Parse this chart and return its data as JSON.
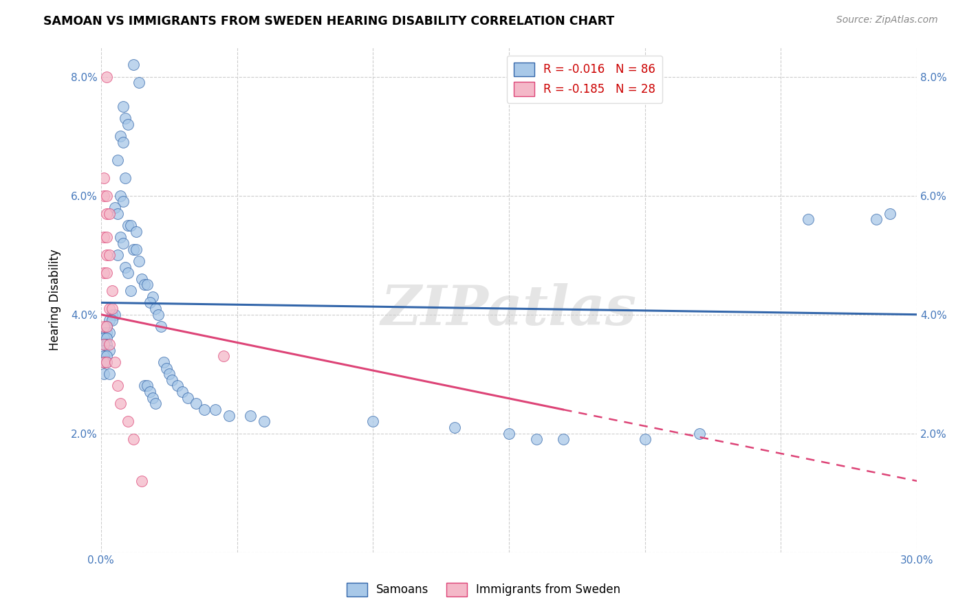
{
  "title": "SAMOAN VS IMMIGRANTS FROM SWEDEN HEARING DISABILITY CORRELATION CHART",
  "source": "Source: ZipAtlas.com",
  "ylabel": "Hearing Disability",
  "watermark": "ZIPatlas",
  "xlim": [
    0.0,
    0.3
  ],
  "ylim": [
    0.0,
    0.085
  ],
  "xticks": [
    0.0,
    0.05,
    0.1,
    0.15,
    0.2,
    0.25,
    0.3
  ],
  "yticks": [
    0.0,
    0.02,
    0.04,
    0.06,
    0.08
  ],
  "blue_color": "#A8C8E8",
  "pink_color": "#F4B8C8",
  "blue_line_color": "#3366AA",
  "pink_line_color": "#DD4477",
  "blue_scatter": [
    [
      0.012,
      0.082
    ],
    [
      0.014,
      0.079
    ],
    [
      0.008,
      0.075
    ],
    [
      0.009,
      0.073
    ],
    [
      0.01,
      0.072
    ],
    [
      0.007,
      0.07
    ],
    [
      0.008,
      0.069
    ],
    [
      0.006,
      0.066
    ],
    [
      0.009,
      0.063
    ],
    [
      0.007,
      0.06
    ],
    [
      0.008,
      0.059
    ],
    [
      0.005,
      0.058
    ],
    [
      0.006,
      0.057
    ],
    [
      0.01,
      0.055
    ],
    [
      0.011,
      0.055
    ],
    [
      0.013,
      0.054
    ],
    [
      0.007,
      0.053
    ],
    [
      0.008,
      0.052
    ],
    [
      0.012,
      0.051
    ],
    [
      0.013,
      0.051
    ],
    [
      0.006,
      0.05
    ],
    [
      0.014,
      0.049
    ],
    [
      0.009,
      0.048
    ],
    [
      0.01,
      0.047
    ],
    [
      0.015,
      0.046
    ],
    [
      0.016,
      0.045
    ],
    [
      0.017,
      0.045
    ],
    [
      0.011,
      0.044
    ],
    [
      0.019,
      0.043
    ],
    [
      0.018,
      0.042
    ],
    [
      0.02,
      0.041
    ],
    [
      0.004,
      0.04
    ],
    [
      0.005,
      0.04
    ],
    [
      0.021,
      0.04
    ],
    [
      0.003,
      0.039
    ],
    [
      0.004,
      0.039
    ],
    [
      0.022,
      0.038
    ],
    [
      0.002,
      0.038
    ],
    [
      0.001,
      0.037
    ],
    [
      0.002,
      0.037
    ],
    [
      0.003,
      0.037
    ],
    [
      0.001,
      0.036
    ],
    [
      0.002,
      0.036
    ],
    [
      0.001,
      0.035
    ],
    [
      0.002,
      0.035
    ],
    [
      0.001,
      0.034
    ],
    [
      0.003,
      0.034
    ],
    [
      0.001,
      0.033
    ],
    [
      0.002,
      0.033
    ],
    [
      0.001,
      0.032
    ],
    [
      0.002,
      0.032
    ],
    [
      0.023,
      0.032
    ],
    [
      0.024,
      0.031
    ],
    [
      0.001,
      0.03
    ],
    [
      0.003,
      0.03
    ],
    [
      0.025,
      0.03
    ],
    [
      0.026,
      0.029
    ],
    [
      0.016,
      0.028
    ],
    [
      0.017,
      0.028
    ],
    [
      0.028,
      0.028
    ],
    [
      0.018,
      0.027
    ],
    [
      0.03,
      0.027
    ],
    [
      0.019,
      0.026
    ],
    [
      0.032,
      0.026
    ],
    [
      0.02,
      0.025
    ],
    [
      0.035,
      0.025
    ],
    [
      0.038,
      0.024
    ],
    [
      0.042,
      0.024
    ],
    [
      0.047,
      0.023
    ],
    [
      0.055,
      0.023
    ],
    [
      0.06,
      0.022
    ],
    [
      0.1,
      0.022
    ],
    [
      0.13,
      0.021
    ],
    [
      0.15,
      0.02
    ],
    [
      0.16,
      0.019
    ],
    [
      0.17,
      0.019
    ],
    [
      0.2,
      0.019
    ],
    [
      0.22,
      0.02
    ],
    [
      0.26,
      0.056
    ],
    [
      0.285,
      0.056
    ],
    [
      0.29,
      0.057
    ]
  ],
  "pink_scatter": [
    [
      0.002,
      0.08
    ],
    [
      0.001,
      0.063
    ],
    [
      0.001,
      0.06
    ],
    [
      0.002,
      0.06
    ],
    [
      0.002,
      0.057
    ],
    [
      0.003,
      0.057
    ],
    [
      0.001,
      0.053
    ],
    [
      0.002,
      0.053
    ],
    [
      0.002,
      0.05
    ],
    [
      0.003,
      0.05
    ],
    [
      0.001,
      0.047
    ],
    [
      0.002,
      0.047
    ],
    [
      0.004,
      0.044
    ],
    [
      0.003,
      0.041
    ],
    [
      0.004,
      0.041
    ],
    [
      0.001,
      0.038
    ],
    [
      0.002,
      0.038
    ],
    [
      0.001,
      0.035
    ],
    [
      0.003,
      0.035
    ],
    [
      0.001,
      0.032
    ],
    [
      0.002,
      0.032
    ],
    [
      0.005,
      0.032
    ],
    [
      0.006,
      0.028
    ],
    [
      0.007,
      0.025
    ],
    [
      0.01,
      0.022
    ],
    [
      0.012,
      0.019
    ],
    [
      0.015,
      0.012
    ],
    [
      0.045,
      0.033
    ]
  ],
  "blue_line": {
    "x0": 0.0,
    "y0": 0.042,
    "x1": 0.3,
    "y1": 0.04
  },
  "pink_line_solid": {
    "x0": 0.0,
    "y0": 0.04,
    "x1": 0.17,
    "y1": 0.024
  },
  "pink_line_dashed": {
    "x0": 0.17,
    "y0": 0.024,
    "x1": 0.3,
    "y1": 0.012
  }
}
